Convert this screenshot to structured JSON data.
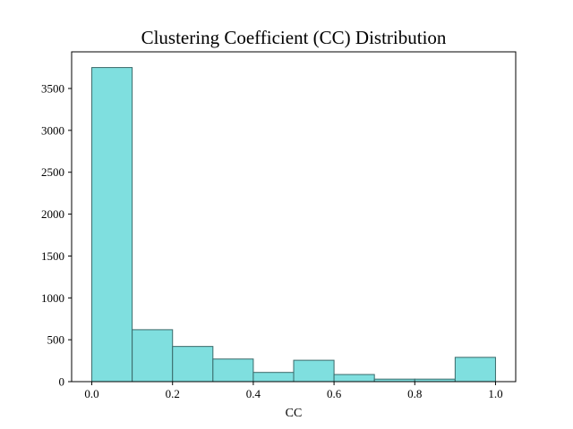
{
  "chart_data": {
    "type": "bar",
    "title": "Clustering Coefficient (CC) Distribution",
    "xlabel": "CC",
    "ylabel": "",
    "bins": [
      {
        "x0": 0.0,
        "x1": 0.1,
        "count": 3750
      },
      {
        "x0": 0.1,
        "x1": 0.2,
        "count": 620
      },
      {
        "x0": 0.2,
        "x1": 0.3,
        "count": 420
      },
      {
        "x0": 0.3,
        "x1": 0.4,
        "count": 270
      },
      {
        "x0": 0.4,
        "x1": 0.5,
        "count": 110
      },
      {
        "x0": 0.5,
        "x1": 0.6,
        "count": 255
      },
      {
        "x0": 0.6,
        "x1": 0.7,
        "count": 85
      },
      {
        "x0": 0.7,
        "x1": 0.8,
        "count": 30
      },
      {
        "x0": 0.8,
        "x1": 0.9,
        "count": 30
      },
      {
        "x0": 0.9,
        "x1": 1.0,
        "count": 290
      }
    ],
    "xlim": [
      -0.05,
      1.05
    ],
    "ylim": [
      0,
      3937.5
    ],
    "xticks": [
      0.0,
      0.2,
      0.4,
      0.6,
      0.8,
      1.0
    ],
    "xtick_labels": [
      "0.0",
      "0.2",
      "0.4",
      "0.6",
      "0.8",
      "1.0"
    ],
    "yticks": [
      0,
      500,
      1000,
      1500,
      2000,
      2500,
      3000,
      3500
    ],
    "ytick_labels": [
      "0",
      "500",
      "1000",
      "1500",
      "2000",
      "2500",
      "3000",
      "3500"
    ],
    "grid": false,
    "legend": "none",
    "colors": {
      "bar_fill": "#7fdfdf",
      "bar_edge": "#3a6a6a",
      "axes": "#000000"
    }
  }
}
